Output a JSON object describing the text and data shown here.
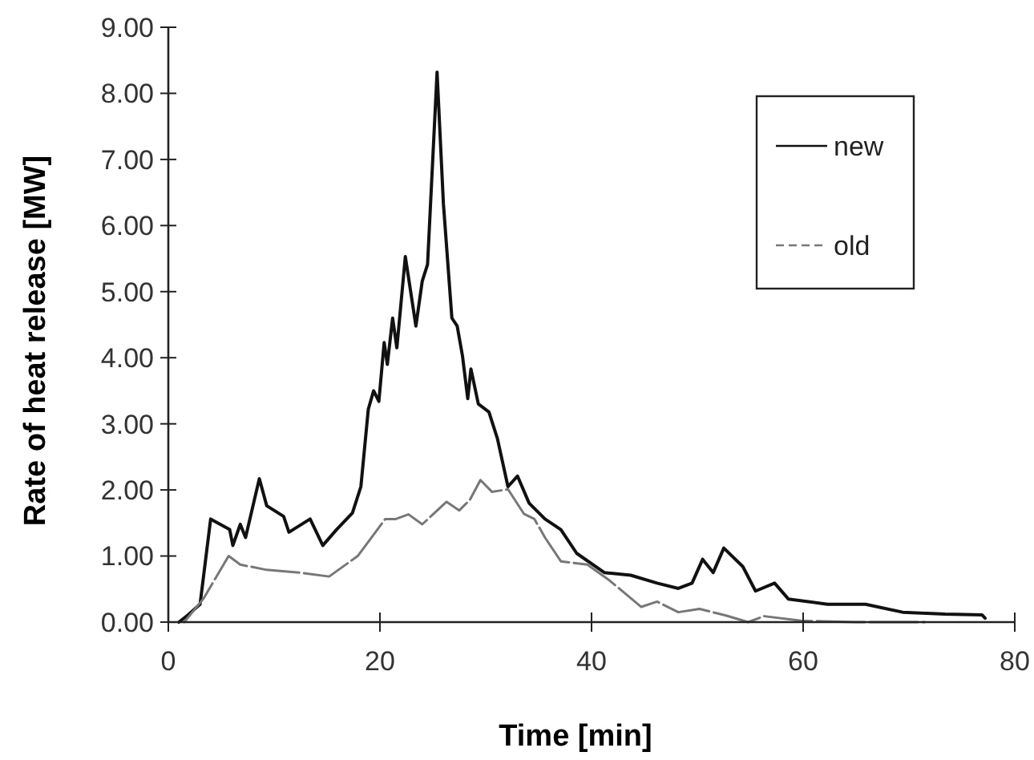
{
  "chart_data": {
    "type": "line",
    "xlabel": "Time [min]",
    "ylabel": "Rate of heat release [MW]",
    "xlim": [
      0,
      80
    ],
    "xticks": [
      0,
      20,
      40,
      60,
      80
    ],
    "ylim": [
      0,
      9
    ],
    "yticks": [
      {
        "value": 0,
        "label": "0.00"
      },
      {
        "value": 1,
        "label": "1.00"
      },
      {
        "value": 2,
        "label": "2.00"
      },
      {
        "value": 3,
        "label": "3.00"
      },
      {
        "value": 4,
        "label": "4.00"
      },
      {
        "value": 5,
        "label": "5.00"
      },
      {
        "value": 6,
        "label": "6.00"
      },
      {
        "value": 7,
        "label": "7.00"
      },
      {
        "value": 8,
        "label": "8.00"
      },
      {
        "value": 9,
        "label": "9.00"
      }
    ],
    "grid": false,
    "legend": "top right",
    "marker": "none",
    "series": [
      {
        "name": "new",
        "color": "#111111",
        "line_style": "solid",
        "x": [
          1,
          1.8,
          3,
          4,
          5.8,
          6.1,
          6.8,
          7.3,
          8.6,
          9.3,
          10.9,
          11.4,
          13.4,
          14.6,
          15.9,
          17.4,
          18.2,
          18.9,
          19.4,
          19.9,
          20.4,
          20.7,
          21.2,
          21.6,
          22.4,
          23.4,
          24,
          24.5,
          25.4,
          26,
          26.8,
          27.3,
          27.8,
          28.3,
          28.6,
          29.3,
          30.3,
          31.1,
          32.1,
          33,
          34.1,
          35.6,
          37.1,
          38.6,
          41.2,
          43.7,
          46.2,
          48.2,
          49.5,
          50.5,
          51.5,
          52.5,
          54.3,
          55.5,
          57.3,
          58.6,
          62.3,
          65.9,
          69.4,
          73.4,
          76.9,
          77.2
        ],
        "values": [
          0,
          0.1,
          0.27,
          1.56,
          1.4,
          1.16,
          1.48,
          1.28,
          2.17,
          1.76,
          1.6,
          1.36,
          1.56,
          1.16,
          1.4,
          1.65,
          2.05,
          3.22,
          3.5,
          3.34,
          4.23,
          3.9,
          4.6,
          4.15,
          5.53,
          4.48,
          5.16,
          5.41,
          8.32,
          6.33,
          4.6,
          4.48,
          4.03,
          3.38,
          3.83,
          3.3,
          3.18,
          2.78,
          2.05,
          2.21,
          1.8,
          1.56,
          1.4,
          1.04,
          0.75,
          0.71,
          0.59,
          0.51,
          0.59,
          0.95,
          0.75,
          1.12,
          0.84,
          0.47,
          0.59,
          0.35,
          0.27,
          0.27,
          0.15,
          0.12,
          0.11,
          0.06
        ]
      },
      {
        "name": "old",
        "color": "#777777",
        "line_style": "dashed",
        "x": [
          1.5,
          3.3,
          5.7,
          6.8,
          9.3,
          12.4,
          15.2,
          17.9,
          20.5,
          21.5,
          22.7,
          24,
          26.3,
          27.5,
          28.5,
          29.5,
          30.6,
          32.1,
          33.6,
          34.6,
          35.6,
          37.1,
          39.6,
          41.7,
          44.7,
          46.2,
          48.2,
          50.2,
          52.7,
          54.8,
          56.3,
          59.8,
          64.9,
          71.5
        ],
        "values": [
          0,
          0.35,
          1,
          0.87,
          0.79,
          0.75,
          0.69,
          1,
          1.56,
          1.56,
          1.63,
          1.48,
          1.82,
          1.69,
          1.85,
          2.15,
          1.97,
          2.01,
          1.64,
          1.56,
          1.28,
          0.92,
          0.87,
          0.63,
          0.23,
          0.31,
          0.15,
          0.2,
          0.1,
          0,
          0.09,
          0.02,
          0,
          0
        ]
      }
    ]
  }
}
